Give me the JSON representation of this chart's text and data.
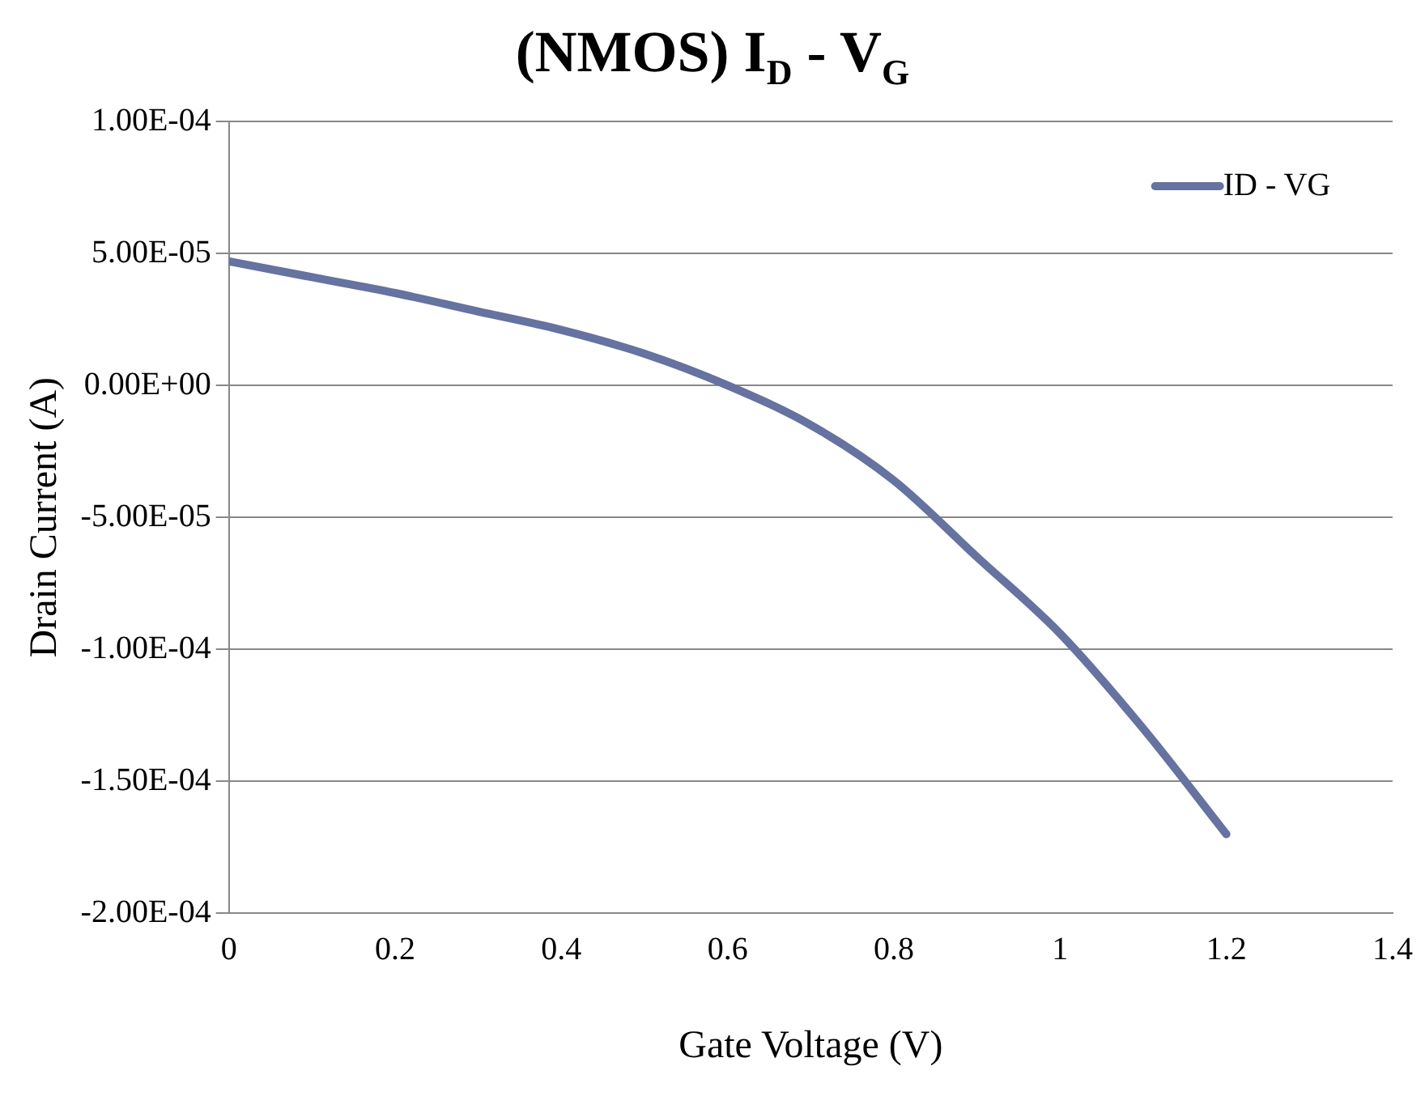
{
  "chart_data": {
    "type": "line",
    "title": "(NMOS) I$_{D}$ - V$_{G}$",
    "xlabel": "Gate Voltage (V)",
    "ylabel": "Drain Current (A)",
    "x": [
      0,
      0.1,
      0.2,
      0.3,
      0.4,
      0.5,
      0.6,
      0.7,
      0.8,
      0.9,
      1.0,
      1.1,
      1.2
    ],
    "series": [
      {
        "name": "ID - VG",
        "color": "#6672a0",
        "values": [
          4.7e-05,
          4.1e-05,
          3.5e-05,
          2.8e-05,
          2.1e-05,
          1.2e-05,
          0,
          -1.5e-05,
          -3.6e-05,
          -6.5e-05,
          -9.4e-05,
          -0.00013,
          -0.00017
        ]
      }
    ],
    "xlim": [
      0,
      1.4
    ],
    "xticks": [
      0,
      0.2,
      0.4,
      0.6,
      0.8,
      1,
      1.2,
      1.4
    ],
    "ylim": [
      -0.0002,
      0.0001
    ],
    "yticks": [
      {
        "value": -0.0002,
        "label": "-2.00E-04"
      },
      {
        "value": -0.00015,
        "label": "-1.50E-04"
      },
      {
        "value": -0.0001,
        "label": "-1.00E-04"
      },
      {
        "value": -5e-05,
        "label": "-5.00E-05"
      },
      {
        "value": 0,
        "label": "0.00E+00"
      },
      {
        "value": 5e-05,
        "label": "5.00E-05"
      },
      {
        "value": 0.0001,
        "label": "1.00E-04"
      }
    ],
    "grid": "y",
    "legend": "top right",
    "marker": "none",
    "line_style": "solid"
  }
}
